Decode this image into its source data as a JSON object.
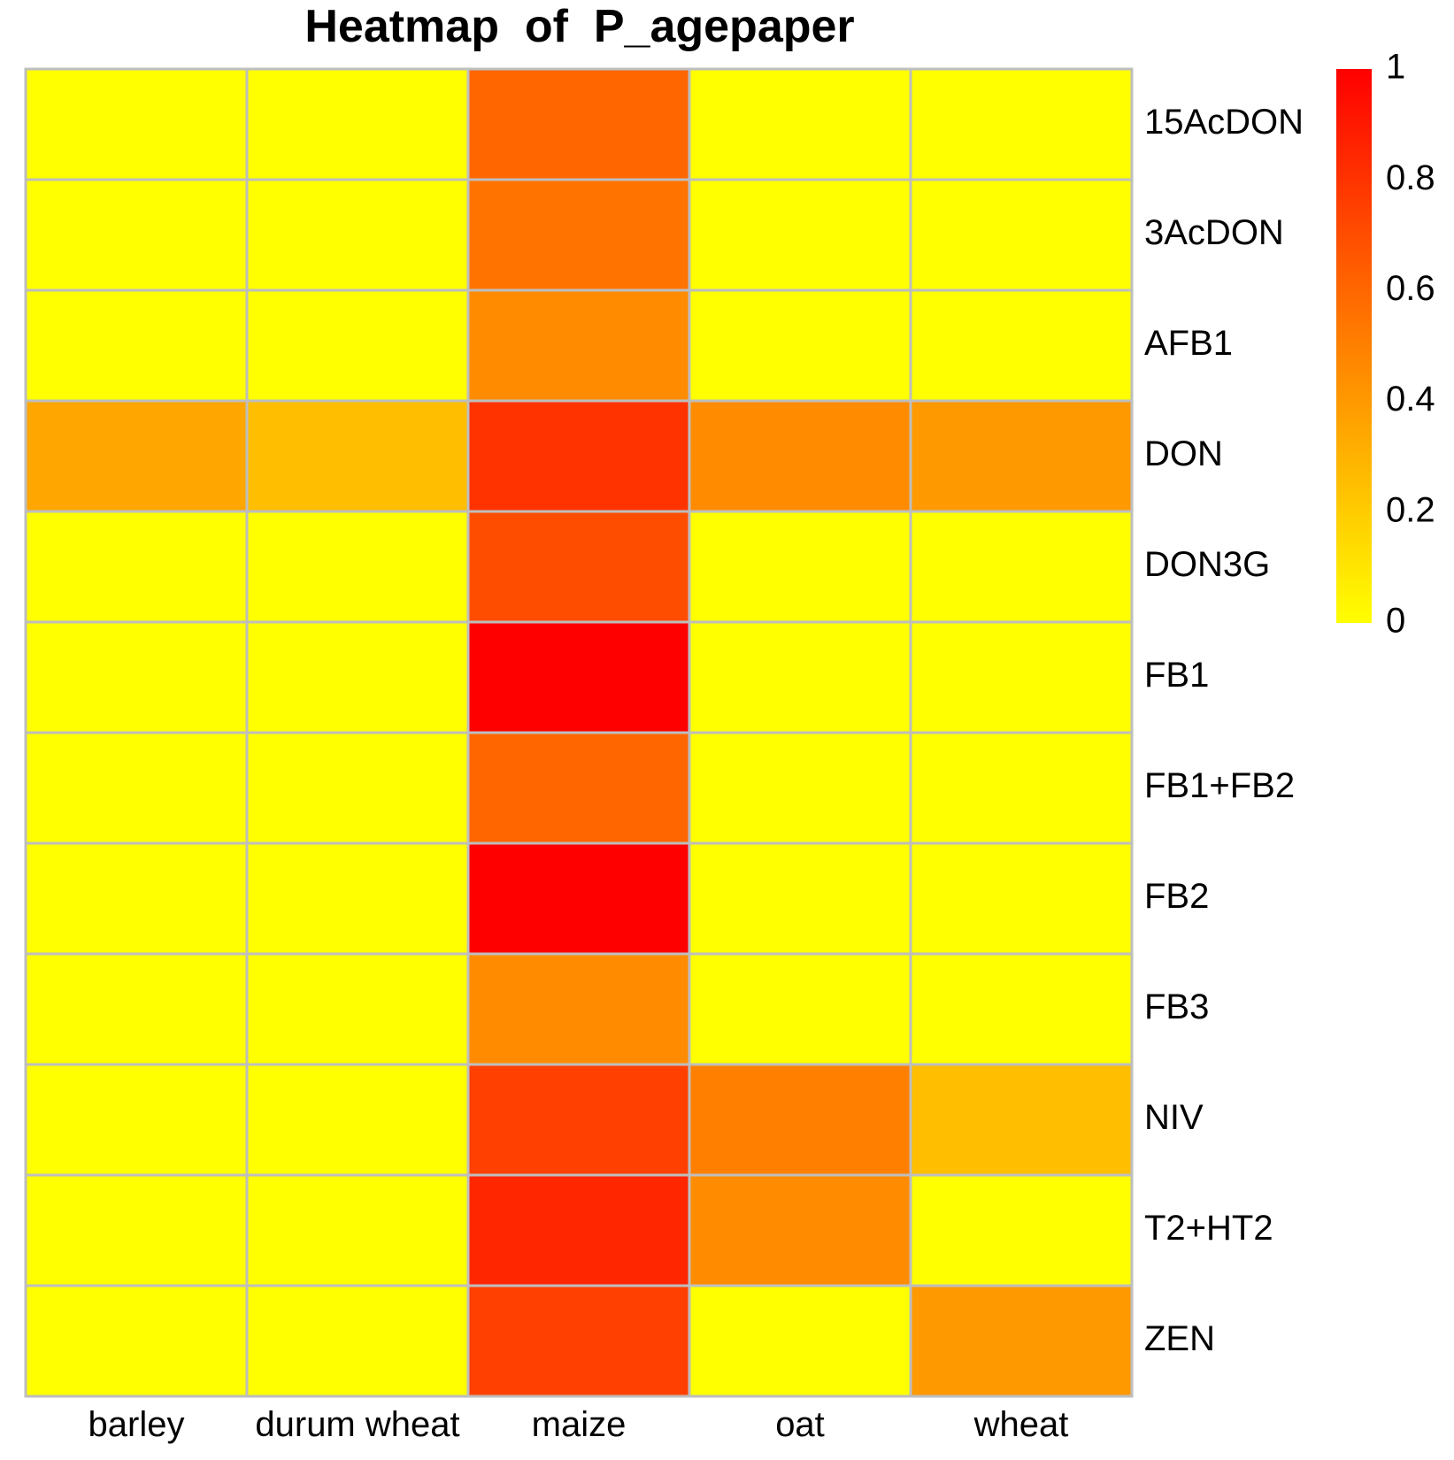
{
  "chart_data": {
    "type": "heatmap",
    "title": "Heatmap  of  P_agepaper",
    "columns": [
      "barley",
      "durum wheat",
      "maize",
      "oat",
      "wheat"
    ],
    "rows": [
      "15AcDON",
      "3AcDON",
      "AFB1",
      "DON",
      "DON3G",
      "FB1",
      "FB1+FB2",
      "FB2",
      "FB3",
      "NIV",
      "T2+HT2",
      "ZEN"
    ],
    "values": [
      [
        0.0,
        0.0,
        0.6,
        0.0,
        0.0
      ],
      [
        0.0,
        0.0,
        0.55,
        0.0,
        0.0
      ],
      [
        0.0,
        0.0,
        0.45,
        0.0,
        0.0
      ],
      [
        0.35,
        0.25,
        0.8,
        0.45,
        0.4
      ],
      [
        0.0,
        0.0,
        0.7,
        0.0,
        0.0
      ],
      [
        0.0,
        0.0,
        1.0,
        0.0,
        0.0
      ],
      [
        0.0,
        0.0,
        0.6,
        0.0,
        0.0
      ],
      [
        0.0,
        0.0,
        1.0,
        0.0,
        0.0
      ],
      [
        0.0,
        0.0,
        0.45,
        0.0,
        0.0
      ],
      [
        0.0,
        0.0,
        0.75,
        0.5,
        0.25
      ],
      [
        0.0,
        0.0,
        0.85,
        0.45,
        0.0
      ],
      [
        0.0,
        0.0,
        0.75,
        0.0,
        0.4
      ]
    ],
    "color_scale": {
      "min": 0,
      "max": 1,
      "low_color": "#FFFF00",
      "high_color": "#FF0000",
      "ticks": [
        "0",
        "0.2",
        "0.4",
        "0.6",
        "0.8",
        "1"
      ]
    },
    "cell_border_color": "#BEBEBE",
    "grid": true,
    "legend_position": "top-right"
  }
}
